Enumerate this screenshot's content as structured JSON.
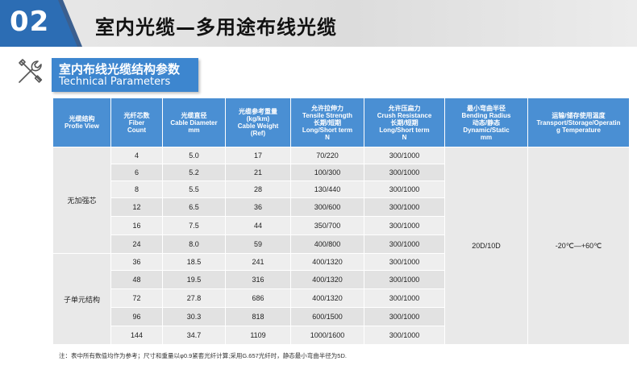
{
  "header": {
    "number": "02",
    "title": "室内光缆—多用途布线光缆"
  },
  "section": {
    "title_cn": "室内布线光缆结构参数",
    "title_en": "Technical Parameters"
  },
  "table": {
    "headers": [
      [
        "光缆结构",
        "Profie View"
      ],
      [
        "光纤芯数",
        "Fiber",
        "Count"
      ],
      [
        "光缆直径",
        "Cable Diameter",
        "mm"
      ],
      [
        "光缆参考重量",
        "(kg/km)",
        "Cable Weight",
        "(Ref)"
      ],
      [
        "允许拉伸力",
        "Tensile Strength",
        "长期/短期",
        "Long/Short term",
        "N"
      ],
      [
        "允许压扁力",
        "Crush Resistance",
        "长期/短期",
        "Long/Short  term",
        "N"
      ],
      [
        "最小弯曲半径",
        "Bending Radius",
        "动态/静态",
        "Dynamic/Static",
        "mm"
      ],
      [
        "运输/储存使用温度",
        "Transport/Storage/Operatin",
        "g Temperature"
      ]
    ],
    "groups": [
      "无加强芯",
      "子单元结构"
    ],
    "bending_radius": "20D/10D",
    "temperature": "-20℃—+60℃",
    "rows": [
      {
        "count": "4",
        "diameter": "5.0",
        "weight": "17",
        "tensile": "70/220",
        "crush": "300/1000"
      },
      {
        "count": "6",
        "diameter": "5.2",
        "weight": "21",
        "tensile": "100/300",
        "crush": "300/1000"
      },
      {
        "count": "8",
        "diameter": "5.5",
        "weight": "28",
        "tensile": "130/440",
        "crush": "300/1000"
      },
      {
        "count": "12",
        "diameter": "6.5",
        "weight": "36",
        "tensile": "300/600",
        "crush": "300/1000"
      },
      {
        "count": "16",
        "diameter": "7.5",
        "weight": "44",
        "tensile": "350/700",
        "crush": "300/1000"
      },
      {
        "count": "24",
        "diameter": "8.0",
        "weight": "59",
        "tensile": "400/800",
        "crush": "300/1000"
      },
      {
        "count": "36",
        "diameter": "18.5",
        "weight": "241",
        "tensile": "400/1320",
        "crush": "300/1000"
      },
      {
        "count": "48",
        "diameter": "19.5",
        "weight": "316",
        "tensile": "400/1320",
        "crush": "300/1000"
      },
      {
        "count": "72",
        "diameter": "27.8",
        "weight": "686",
        "tensile": "400/1320",
        "crush": "300/1000"
      },
      {
        "count": "96",
        "diameter": "30.3",
        "weight": "818",
        "tensile": "600/1500",
        "crush": "300/1000"
      },
      {
        "count": "144",
        "diameter": "34.7",
        "weight": "1109",
        "tensile": "1000/1600",
        "crush": "300/1000"
      }
    ]
  },
  "note": "注：表中所有数值均作为参考；尺寸和重量以φ0.9紧套光纤计算;采用G.657光纤时，静态最小弯曲半径为5D."
}
